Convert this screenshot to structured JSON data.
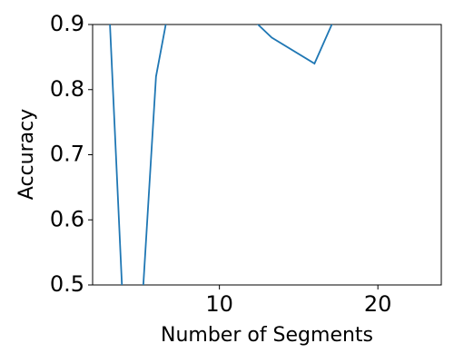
{
  "chart_data": {
    "type": "line",
    "x": [
      3,
      4,
      5,
      6,
      7,
      8,
      9,
      10,
      11,
      12,
      13.3,
      16,
      18,
      19,
      20,
      21,
      22,
      23
    ],
    "series": [
      {
        "name": "Accuracy",
        "color": "#1f77b4",
        "values": [
          0.95,
          0.42,
          0.42,
          0.82,
          0.95,
          0.95,
          0.95,
          0.95,
          0.95,
          0.91,
          0.88,
          0.84,
          0.95,
          0.95,
          0.95,
          0.95,
          0.95,
          0.95
        ]
      }
    ],
    "xlabel": "Number of Segments",
    "ylabel": "Accuracy",
    "xlim": [
      2,
      24
    ],
    "ylim": [
      0.5,
      0.9
    ],
    "xticks": [
      10,
      20
    ],
    "yticks": [
      0.5,
      0.6,
      0.7,
      0.8,
      0.9
    ],
    "grid": false
  }
}
